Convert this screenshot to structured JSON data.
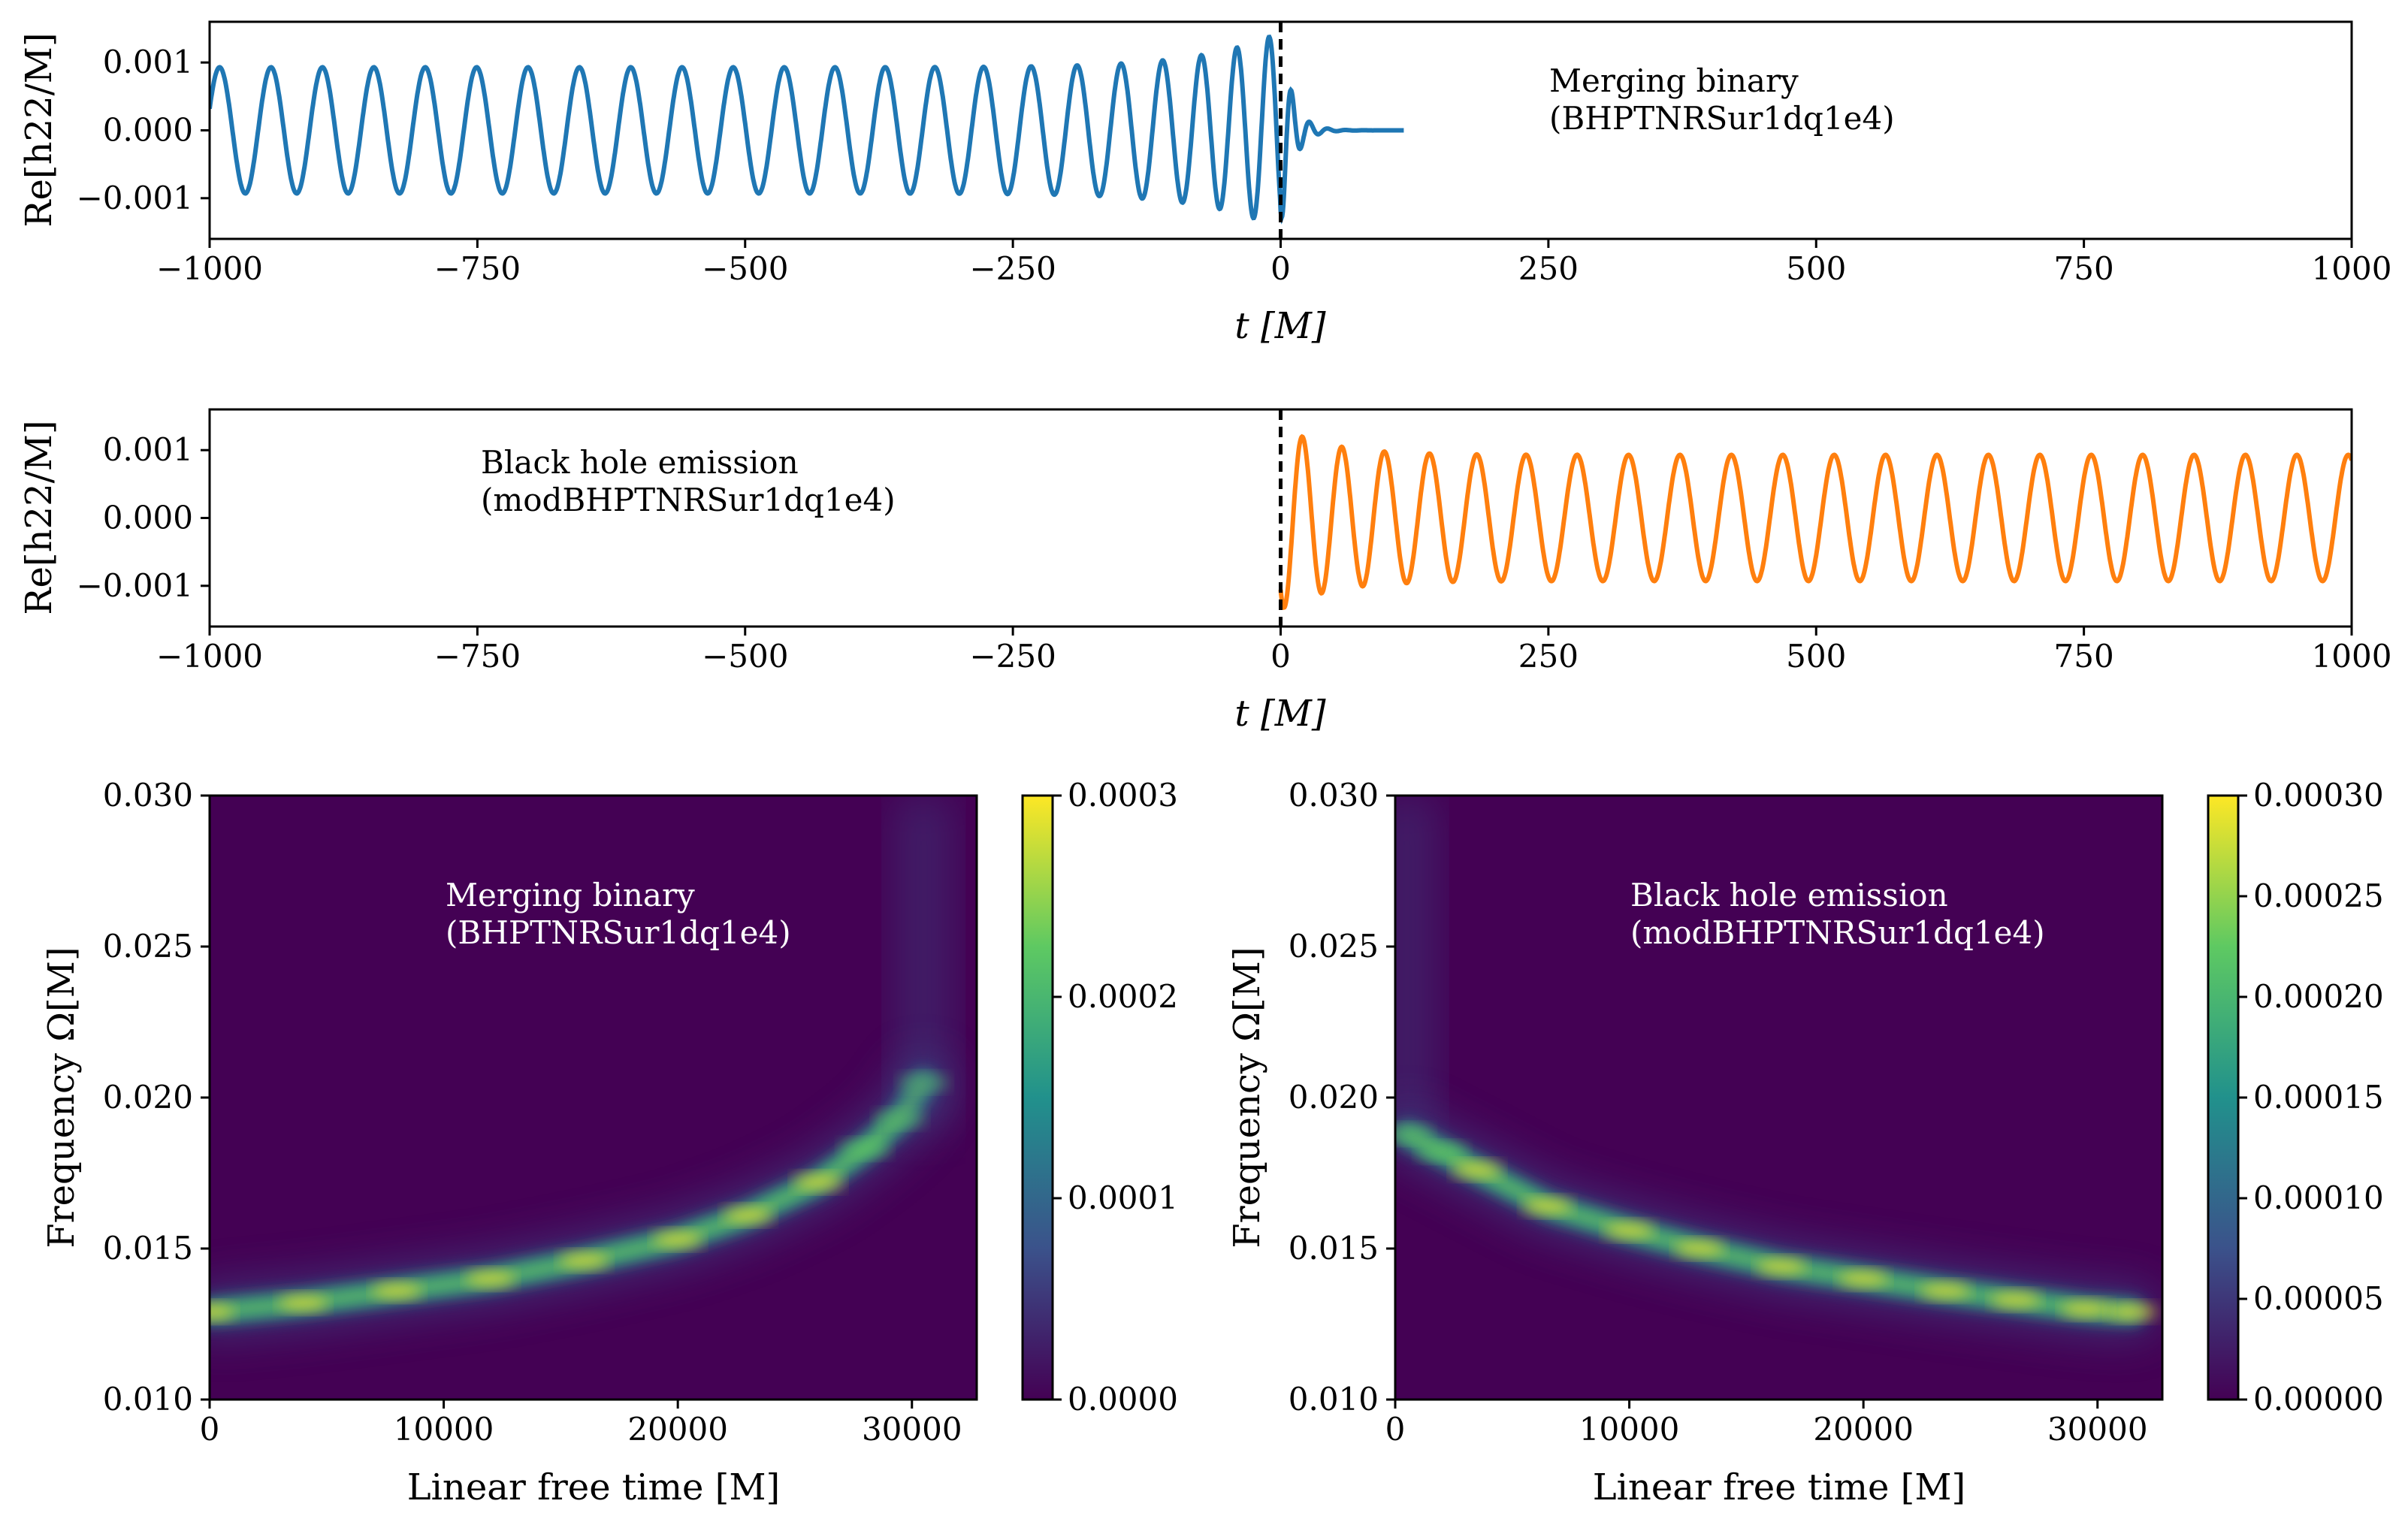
{
  "colors": {
    "blue": "#1f77b4",
    "orange": "#ff7f0e",
    "heat_bg": "#440154",
    "cbar": [
      "#440154",
      "#3b528b",
      "#21918c",
      "#5ec962",
      "#fde725"
    ]
  },
  "chart_data": [
    {
      "id": "top",
      "type": "line",
      "xlabel": "t [M]",
      "ylabel": "Re[h22/M]",
      "xlim": [
        -1000,
        1000
      ],
      "ylim": [
        -0.0016,
        0.0016
      ],
      "xticks": [
        "−1000",
        "−750",
        "−500",
        "−250",
        "0",
        "250",
        "500",
        "750",
        "1000"
      ],
      "xtick_values": [
        -1000,
        -750,
        -500,
        -250,
        0,
        250,
        500,
        750,
        1000
      ],
      "yticks": [
        "0.001",
        "0.000",
        "−0.001"
      ],
      "ytick_values": [
        0.001,
        0.0,
        -0.001
      ],
      "vline": 0,
      "annotation": [
        "Merging binary",
        "(BHPTNRSur1dq1e4)"
      ],
      "series": [
        {
          "name": "Merging binary",
          "color": "#1f77b4",
          "x_range": [
            -1000,
            115
          ],
          "amplitude_early": 0.00093,
          "amplitude_peak": 0.00145,
          "peak_time": 0,
          "period_early": 48,
          "period_merger": 27,
          "ringdown_period": 17
        }
      ]
    },
    {
      "id": "middle",
      "type": "line",
      "xlabel": "t [M]",
      "ylabel": "Re[h22/M]",
      "xlim": [
        -1000,
        1000
      ],
      "ylim": [
        -0.0016,
        0.0016
      ],
      "xticks": [
        "−1000",
        "−750",
        "−500",
        "−250",
        "0",
        "250",
        "500",
        "750",
        "1000"
      ],
      "xtick_values": [
        -1000,
        -750,
        -500,
        -250,
        0,
        250,
        500,
        750,
        1000
      ],
      "yticks": [
        "0.001",
        "0.000",
        "−0.001"
      ],
      "ytick_values": [
        0.001,
        0.0,
        -0.001
      ],
      "vline": 0,
      "annotation": [
        "Black hole emission",
        "(modBHPTNRSur1dq1e4)"
      ],
      "series": [
        {
          "name": "Black hole emission",
          "color": "#ff7f0e",
          "x_range": [
            0,
            1000
          ],
          "amplitude_start": 0.00135,
          "amplitude_late": 0.00093,
          "period_start": 30,
          "period_late": 48
        }
      ]
    },
    {
      "id": "bottom-left",
      "type": "heatmap",
      "xlabel": "Linear free time [M]",
      "ylabel": "Frequency Ω[M]",
      "xlim": [
        0,
        32768
      ],
      "ylim": [
        0.01,
        0.03
      ],
      "xticks": [
        "0",
        "10000",
        "20000",
        "30000"
      ],
      "xtick_values": [
        0,
        10000,
        20000,
        30000
      ],
      "yticks": [
        "0.010",
        "0.015",
        "0.020",
        "0.025",
        "0.030"
      ],
      "ytick_values": [
        0.01,
        0.015,
        0.02,
        0.025,
        0.03
      ],
      "annotation": [
        "Merging binary",
        "(BHPTNRSur1dq1e4)"
      ],
      "track": {
        "t": [
          0,
          4000,
          8000,
          12000,
          16000,
          20000,
          23000,
          26000,
          28000,
          29500,
          30500
        ],
        "freq": [
          0.0129,
          0.0132,
          0.0136,
          0.014,
          0.0146,
          0.0153,
          0.0161,
          0.0172,
          0.0183,
          0.0193,
          0.0205
        ]
      },
      "colorbar": {
        "min": 0.0,
        "max": 0.0003,
        "ticks": [
          "0.0000",
          "0.0001",
          "0.0002",
          "0.0003"
        ],
        "tick_values": [
          0.0,
          0.0001,
          0.0002,
          0.0003
        ]
      }
    },
    {
      "id": "bottom-right",
      "type": "heatmap",
      "xlabel": "Linear free time [M]",
      "ylabel": "Frequency Ω[M]",
      "xlim": [
        0,
        32768
      ],
      "ylim": [
        0.01,
        0.03
      ],
      "xticks": [
        "0",
        "10000",
        "20000",
        "30000"
      ],
      "xtick_values": [
        0,
        10000,
        20000,
        30000
      ],
      "yticks": [
        "0.010",
        "0.015",
        "0.020",
        "0.025",
        "0.030"
      ],
      "ytick_values": [
        0.01,
        0.015,
        0.02,
        0.025,
        0.03
      ],
      "annotation": [
        "Black hole emission",
        "(modBHPTNRSur1dq1e4)"
      ],
      "track": {
        "t": [
          500,
          2000,
          3500,
          6500,
          10000,
          13000,
          16500,
          20000,
          23500,
          26500,
          29500,
          31500
        ],
        "freq": [
          0.0188,
          0.0182,
          0.0176,
          0.0164,
          0.0156,
          0.015,
          0.0144,
          0.014,
          0.0136,
          0.0133,
          0.013,
          0.0129
        ]
      },
      "colorbar": {
        "min": 0.0,
        "max": 0.0003,
        "ticks": [
          "0.00000",
          "0.00005",
          "0.00010",
          "0.00015",
          "0.00020",
          "0.00025",
          "0.00030"
        ],
        "tick_values": [
          0.0,
          5e-05,
          0.0001,
          0.00015,
          0.0002,
          0.00025,
          0.0003
        ]
      }
    }
  ]
}
